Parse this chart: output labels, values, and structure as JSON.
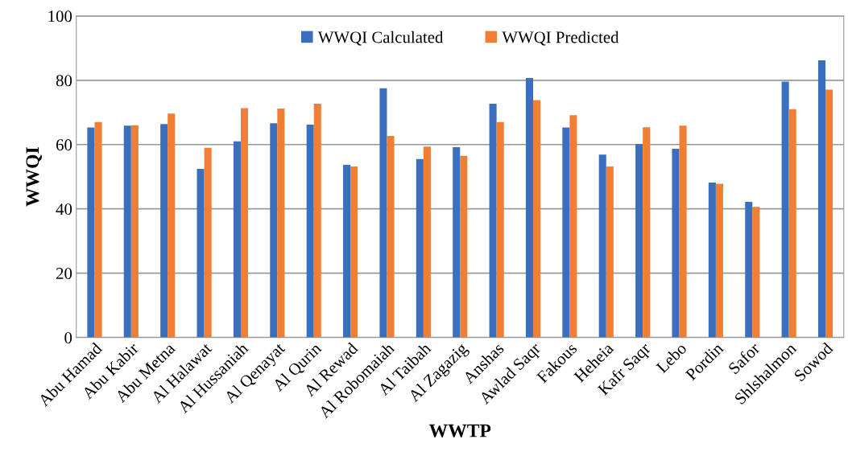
{
  "chart_data": {
    "type": "bar",
    "xlabel": "WWTP",
    "ylabel": "WWQI",
    "categories": [
      "Abu Hamad",
      "Abu Kabir",
      "Abu Metna",
      "Al Halawat",
      "Al Hussaniah",
      "Al Qenayat",
      "Al Qurin",
      "Al Rewad",
      "Al Robomaiah",
      "Al Taibah",
      "Al Zagazig",
      "Anshas",
      "Awlad Saqr",
      "Fakous",
      "Heheia",
      "Kafr Saqr",
      "Lebo",
      "Pordin",
      "Safor",
      "Shlshalmon",
      "Sowod"
    ],
    "series": [
      {
        "name": "WWQI Calculated",
        "color": "#3a6fbf",
        "values": [
          65.3,
          65.9,
          66.4,
          52.4,
          61.0,
          66.6,
          66.2,
          53.7,
          77.5,
          55.5,
          59.2,
          72.7,
          80.7,
          65.3,
          56.9,
          60.2,
          58.7,
          48.2,
          42.2,
          79.6,
          86.2
        ]
      },
      {
        "name": "WWQI Predicted",
        "color": "#f07f35",
        "values": [
          67.0,
          66.0,
          69.6,
          59.0,
          71.3,
          71.2,
          72.7,
          53.2,
          62.7,
          59.4,
          56.5,
          67.0,
          73.8,
          69.1,
          53.2,
          65.4,
          65.9,
          47.8,
          40.6,
          71.0,
          77.1
        ]
      }
    ],
    "ylim": [
      0,
      100
    ],
    "yticks": [
      0,
      20,
      40,
      60,
      80,
      100
    ],
    "grid": "y",
    "legend": "top"
  }
}
